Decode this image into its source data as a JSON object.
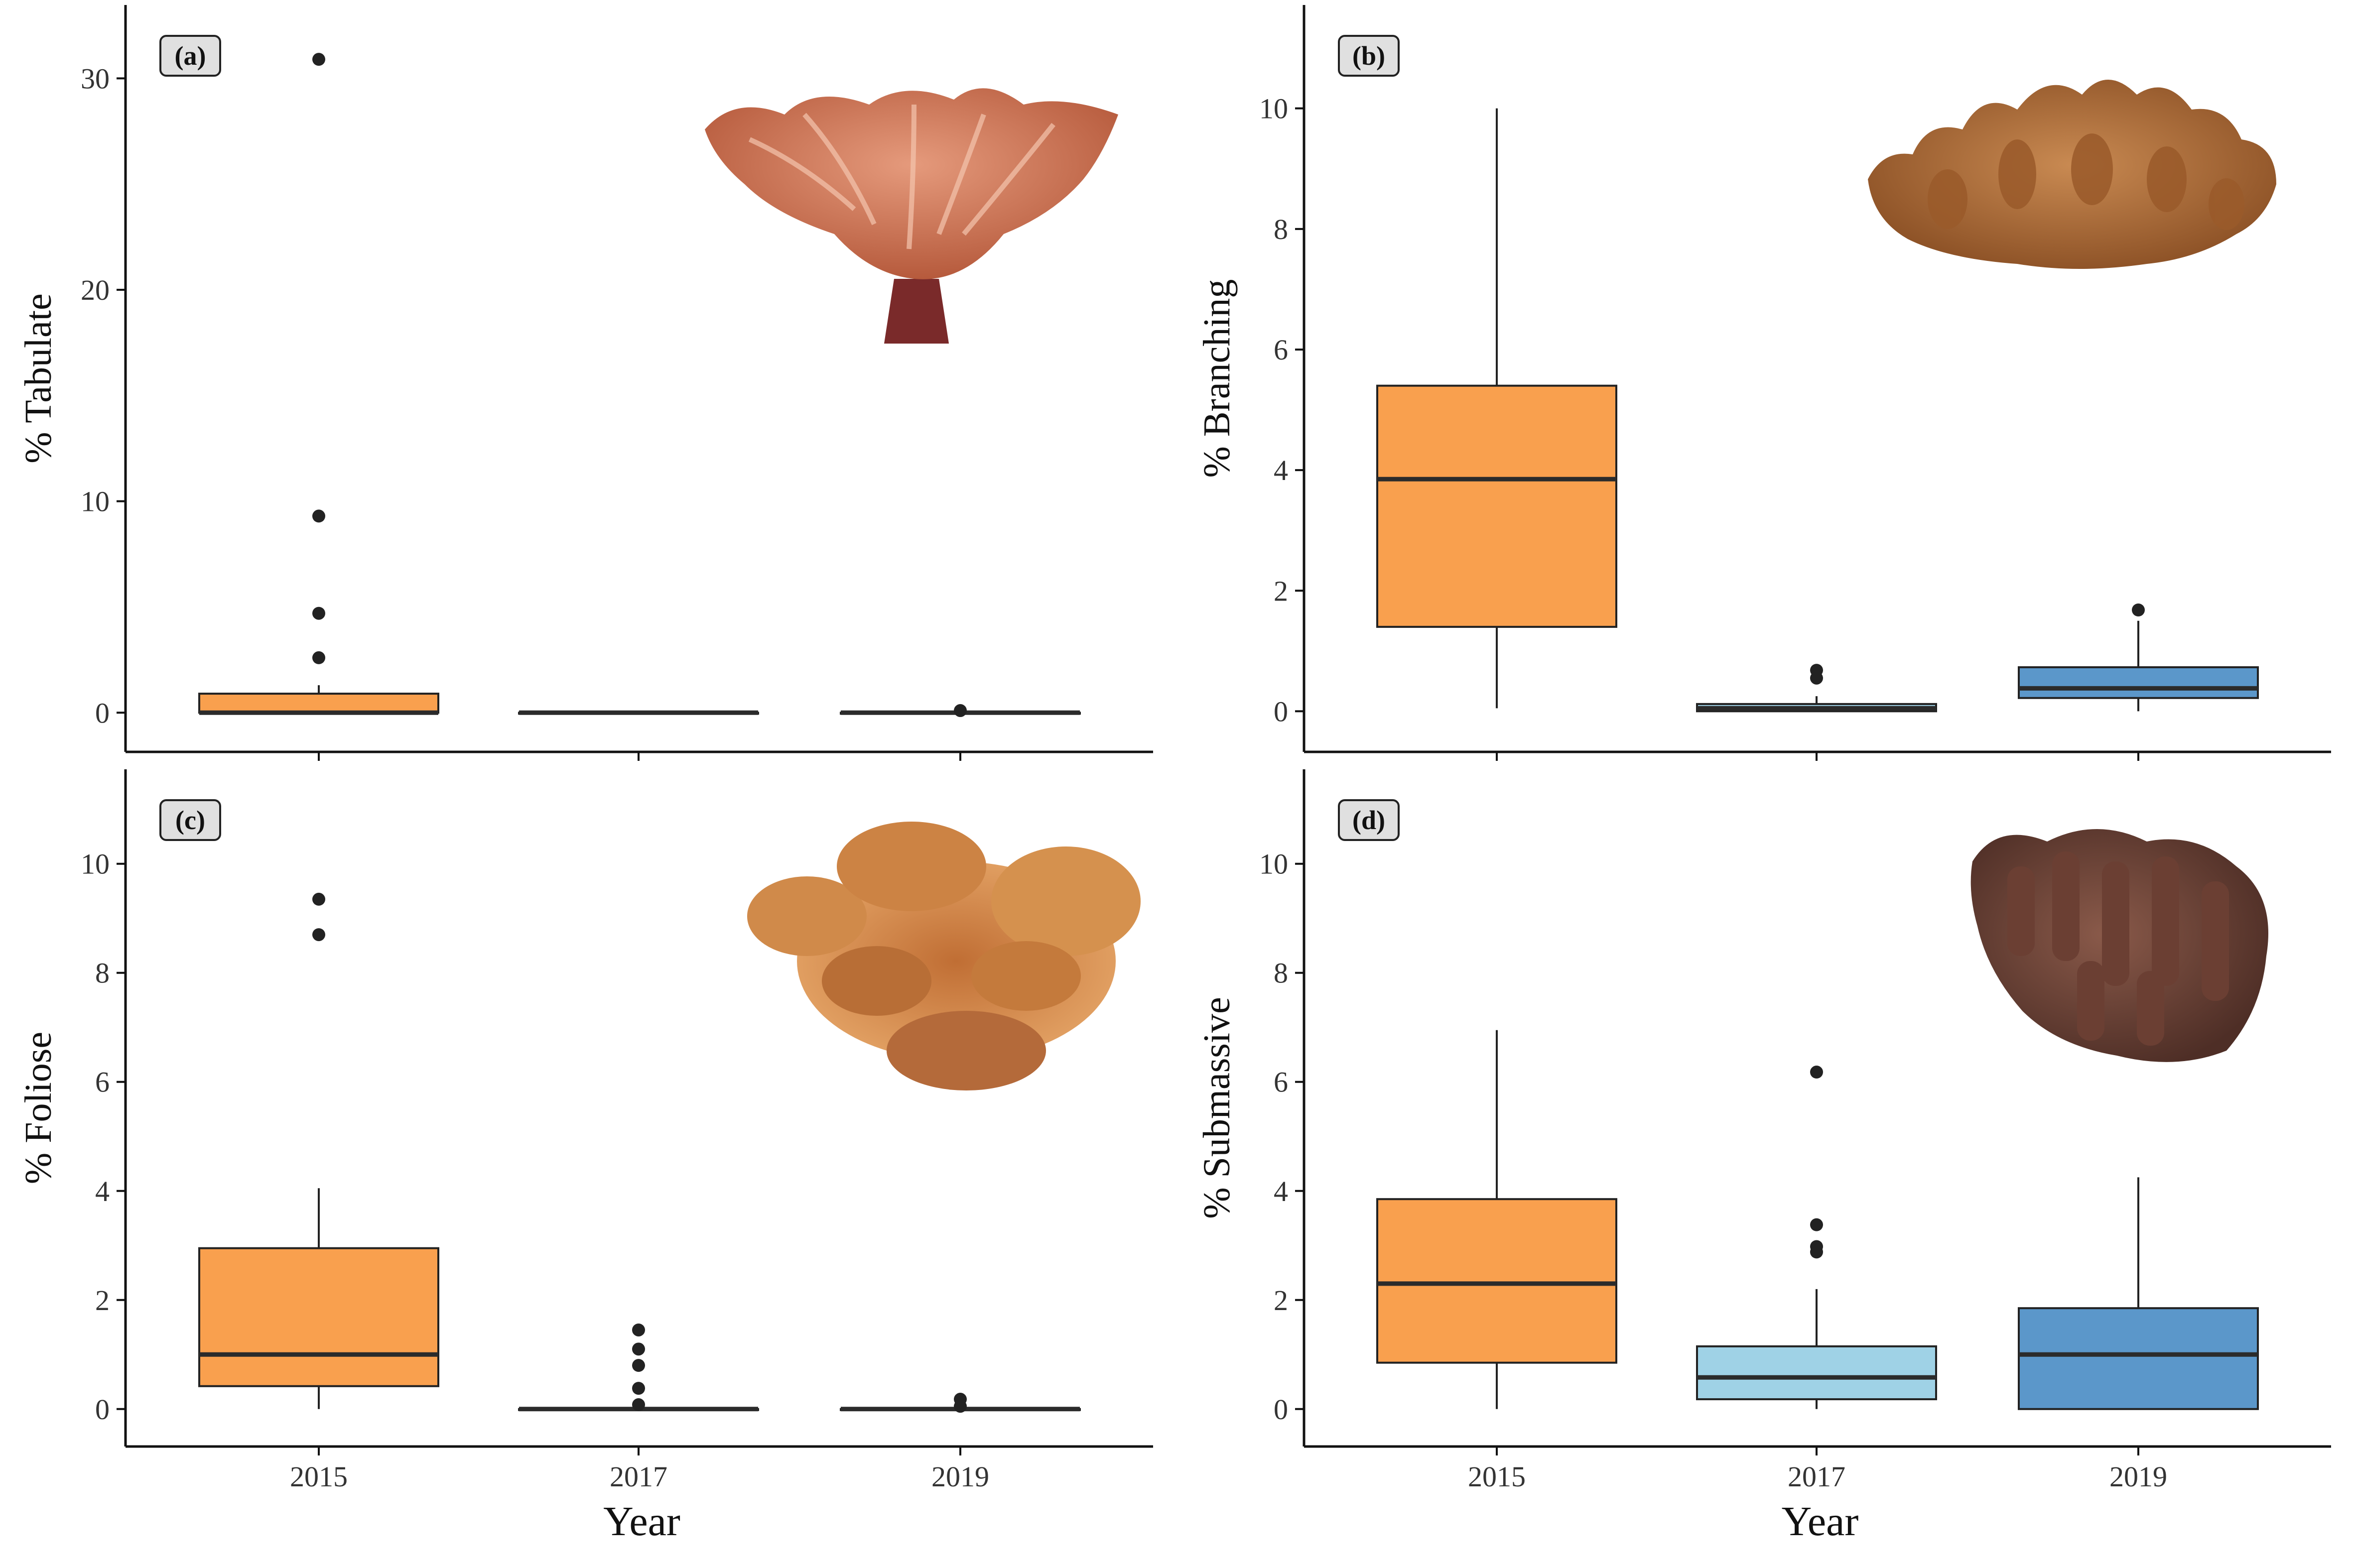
{
  "colors": {
    "box_2015": "#F9A04E",
    "box_2017": "#9FD2E6",
    "box_2019": "#5B97CA",
    "median": "#2b2b2b",
    "outline": "#222222",
    "axis": "#111111",
    "tag_fill": "#E0E0E0"
  },
  "icons": [
    "tabulate-coral-photo",
    "branching-coral-photo",
    "foliose-coral-photo",
    "submassive-coral-photo"
  ],
  "chart_data": [
    {
      "type": "box",
      "panel": "(a)",
      "ylabel": "% Tabulate",
      "xlabel": "",
      "categories": [
        "2015",
        "2017",
        "2019"
      ],
      "yticks": [
        "0",
        "10",
        "20",
        "30"
      ],
      "ylim": [
        -1.5,
        33
      ],
      "boxes": [
        {
          "min": 0,
          "q1": 0,
          "median": 0,
          "q3": 0.9,
          "max": 1.3,
          "outliers": [
            2.6,
            4.7,
            9.3,
            30.9
          ]
        },
        {
          "min": 0,
          "q1": 0,
          "median": 0,
          "q3": 0,
          "max": 0,
          "outliers": []
        },
        {
          "min": 0,
          "q1": 0,
          "median": 0,
          "q3": 0,
          "max": 0,
          "outliers": [
            0.1
          ]
        }
      ]
    },
    {
      "type": "box",
      "panel": "(b)",
      "ylabel": "% Branching",
      "xlabel": "",
      "categories": [
        "2015",
        "2017",
        "2019"
      ],
      "yticks": [
        "0",
        "2",
        "4",
        "6",
        "8",
        "10"
      ],
      "ylim": [
        -0.55,
        11.55
      ],
      "boxes": [
        {
          "min": 0.05,
          "q1": 1.4,
          "median": 3.85,
          "q3": 5.4,
          "max": 10.0,
          "outliers": []
        },
        {
          "min": 0,
          "q1": 0,
          "median": 0.05,
          "q3": 0.12,
          "max": 0.25,
          "outliers": [
            0.55,
            0.68
          ]
        },
        {
          "min": 0,
          "q1": 0.22,
          "median": 0.38,
          "q3": 0.73,
          "max": 1.5,
          "outliers": [
            1.68
          ]
        }
      ]
    },
    {
      "type": "box",
      "panel": "(c)",
      "ylabel": "% Foliose",
      "xlabel": "Year",
      "categories": [
        "2015",
        "2017",
        "2019"
      ],
      "yticks": [
        "0",
        "2",
        "4",
        "6",
        "8",
        "10"
      ],
      "ylim": [
        -0.55,
        11.55
      ],
      "boxes": [
        {
          "min": 0,
          "q1": 0.42,
          "median": 1.0,
          "q3": 2.95,
          "max": 4.05,
          "outliers": [
            8.7,
            9.35
          ]
        },
        {
          "min": 0,
          "q1": 0,
          "median": 0,
          "q3": 0,
          "max": 0,
          "outliers": [
            0.08,
            0.38,
            0.8,
            1.1,
            1.45
          ]
        },
        {
          "min": 0,
          "q1": 0,
          "median": 0,
          "q3": 0,
          "max": 0,
          "outliers": [
            0.05,
            0.18
          ]
        }
      ]
    },
    {
      "type": "box",
      "panel": "(d)",
      "ylabel": "% Submassive",
      "xlabel": "Year",
      "categories": [
        "2015",
        "2017",
        "2019"
      ],
      "yticks": [
        "0",
        "2",
        "4",
        "6",
        "8",
        "10"
      ],
      "ylim": [
        -0.55,
        11.55
      ],
      "boxes": [
        {
          "min": 0,
          "q1": 0.85,
          "median": 2.3,
          "q3": 3.85,
          "max": 6.95,
          "outliers": []
        },
        {
          "min": 0,
          "q1": 0.18,
          "median": 0.58,
          "q3": 1.15,
          "max": 2.2,
          "outliers": [
            2.88,
            2.98,
            3.38,
            6.18
          ]
        },
        {
          "min": 0,
          "q1": 0,
          "median": 1.0,
          "q3": 1.85,
          "max": 4.25,
          "outliers": []
        }
      ]
    }
  ]
}
